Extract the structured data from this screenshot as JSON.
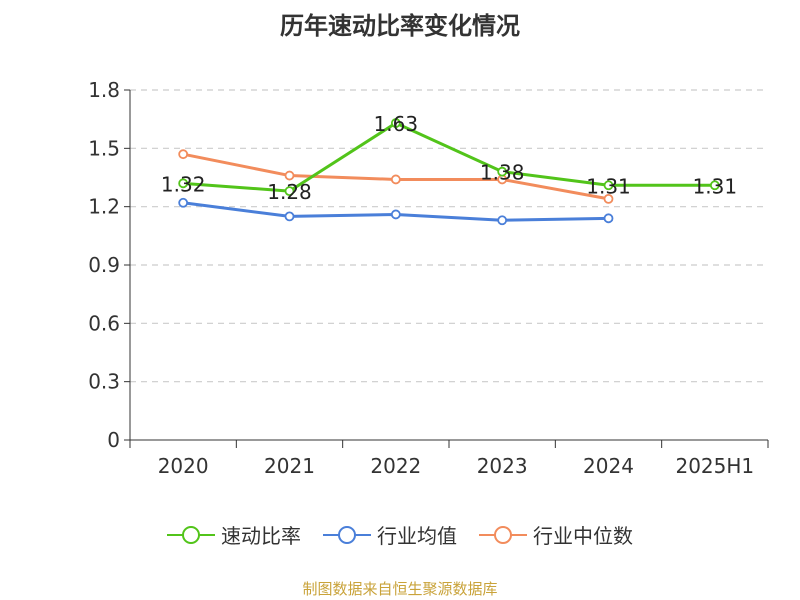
{
  "chart_data": {
    "type": "line",
    "title": "历年速动比率变化情况",
    "categories": [
      "2020",
      "2021",
      "2022",
      "2023",
      "2024",
      "2025H1"
    ],
    "ylim": [
      0,
      1.8
    ],
    "yticks": [
      "0",
      "0.3",
      "0.6",
      "0.9",
      "1.2",
      "1.5",
      "1.8"
    ],
    "grid": true,
    "legend_position": "bottom",
    "series": [
      {
        "name": "速动比率",
        "color": "#52c41a",
        "values": [
          1.32,
          1.28,
          1.63,
          1.38,
          1.31,
          1.31
        ],
        "labels": [
          "1.32",
          "1.28",
          "1.63",
          "1.38",
          "1.31",
          "1.31"
        ]
      },
      {
        "name": "行业均值",
        "color": "#4a7fd9",
        "values": [
          1.22,
          1.15,
          1.16,
          1.13,
          1.14,
          null
        ]
      },
      {
        "name": "行业中位数",
        "color": "#f28c5c",
        "values": [
          1.47,
          1.36,
          1.34,
          1.34,
          1.24,
          null
        ]
      }
    ]
  },
  "source": "制图数据来自恒生聚源数据库"
}
